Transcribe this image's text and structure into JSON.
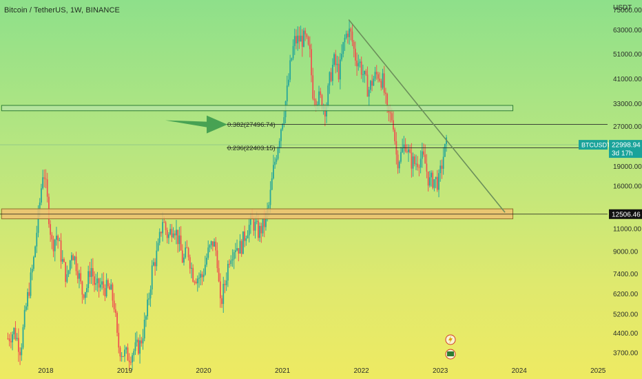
{
  "header": {
    "title": "Bitcoin / TetherUS, 1W, BINANCE"
  },
  "chart_data": {
    "type": "candlestick",
    "symbol": "BTCUSDT",
    "interval": "1W",
    "exchange": "BINANCE",
    "y_scale": "log",
    "y_unit": "USDT",
    "ylim": [
      3400,
      82000
    ],
    "xlim": [
      2017.42,
      2025.12
    ],
    "y_tick_labels": [
      "75000.00",
      "63000.00",
      "51000.00",
      "41000.00",
      "33000.00",
      "27000.00",
      "19000.00",
      "16000.00",
      "11000.00",
      "9000.00",
      "7400.00",
      "6200.00",
      "5200.00",
      "4400.00",
      "3700.00"
    ],
    "y_ticks": [
      75000,
      63000,
      51000,
      41000,
      33000,
      27000,
      19000,
      16000,
      11000,
      9000,
      7400,
      6200,
      5200,
      4400,
      3700
    ],
    "x_tick_labels": [
      "2018",
      "2019",
      "2020",
      "2021",
      "2022",
      "2023",
      "2024",
      "2025"
    ],
    "x_ticks": [
      2018,
      2019,
      2020,
      2021,
      2022,
      2023,
      2024,
      2025
    ],
    "price_path": [
      [
        2017.52,
        4200
      ],
      [
        2017.6,
        4500
      ],
      [
        2017.68,
        3800
      ],
      [
        2017.76,
        5800
      ],
      [
        2017.84,
        8000
      ],
      [
        2017.92,
        13500
      ],
      [
        2017.97,
        19000
      ],
      [
        2018.02,
        14000
      ],
      [
        2018.08,
        9500
      ],
      [
        2018.14,
        10500
      ],
      [
        2018.2,
        8500
      ],
      [
        2018.27,
        7000
      ],
      [
        2018.33,
        9200
      ],
      [
        2018.4,
        7800
      ],
      [
        2018.46,
        6300
      ],
      [
        2018.52,
        6600
      ],
      [
        2018.57,
        8000
      ],
      [
        2018.63,
        6500
      ],
      [
        2018.7,
        6700
      ],
      [
        2018.76,
        6500
      ],
      [
        2018.82,
        6400
      ],
      [
        2018.87,
        5600
      ],
      [
        2018.91,
        4000
      ],
      [
        2018.97,
        3700
      ],
      [
        2019.05,
        3600
      ],
      [
        2019.13,
        3800
      ],
      [
        2019.2,
        4000
      ],
      [
        2019.28,
        5200
      ],
      [
        2019.35,
        7800
      ],
      [
        2019.42,
        9000
      ],
      [
        2019.48,
        12000
      ],
      [
        2019.55,
        10200
      ],
      [
        2019.62,
        11500
      ],
      [
        2019.68,
        10000
      ],
      [
        2019.74,
        8200
      ],
      [
        2019.8,
        9200
      ],
      [
        2019.86,
        7400
      ],
      [
        2019.92,
        7200
      ],
      [
        2019.98,
        7200
      ],
      [
        2020.05,
        8800
      ],
      [
        2020.12,
        9800
      ],
      [
        2020.17,
        8800
      ],
      [
        2020.21,
        5500
      ],
      [
        2020.27,
        6800
      ],
      [
        2020.33,
        8700
      ],
      [
        2020.4,
        9500
      ],
      [
        2020.47,
        9300
      ],
      [
        2020.55,
        11000
      ],
      [
        2020.62,
        11700
      ],
      [
        2020.7,
        10600
      ],
      [
        2020.77,
        11500
      ],
      [
        2020.83,
        13500
      ],
      [
        2020.88,
        18000
      ],
      [
        2020.94,
        23000
      ],
      [
        2021.0,
        29000
      ],
      [
        2021.05,
        35000
      ],
      [
        2021.1,
        46000
      ],
      [
        2021.15,
        57000
      ],
      [
        2021.22,
        58000
      ],
      [
        2021.29,
        58000
      ],
      [
        2021.35,
        50000
      ],
      [
        2021.38,
        37000
      ],
      [
        2021.43,
        35000
      ],
      [
        2021.49,
        34000
      ],
      [
        2021.55,
        31500
      ],
      [
        2021.6,
        41000
      ],
      [
        2021.65,
        48000
      ],
      [
        2021.72,
        43000
      ],
      [
        2021.78,
        57000
      ],
      [
        2021.83,
        63000
      ],
      [
        2021.87,
        60000
      ],
      [
        2021.92,
        50000
      ],
      [
        2021.98,
        47000
      ],
      [
        2022.04,
        41000
      ],
      [
        2022.09,
        37000
      ],
      [
        2022.15,
        41000
      ],
      [
        2022.21,
        43000
      ],
      [
        2022.27,
        40000
      ],
      [
        2022.33,
        30000
      ],
      [
        2022.4,
        29000
      ],
      [
        2022.45,
        20000
      ],
      [
        2022.5,
        21000
      ],
      [
        2022.56,
        23500
      ],
      [
        2022.62,
        20000
      ],
      [
        2022.68,
        19500
      ],
      [
        2022.74,
        20500
      ],
      [
        2022.8,
        20000
      ],
      [
        2022.86,
        16500
      ],
      [
        2022.92,
        17000
      ],
      [
        2022.98,
        16500
      ],
      [
        2023.04,
        21000
      ],
      [
        2023.08,
        23000
      ]
    ],
    "current_price": "22998.94",
    "countdown": "3d 17h",
    "ticker_badge": "BTCUSDT",
    "support_label": "12506.46",
    "support_price": 12506.46,
    "annotations": {
      "fib_382_label": "0.382(27496.74)",
      "fib_382_price": 27496.74,
      "fib_236_label": "0.236(22403.15)",
      "fib_236_price": 22403.15,
      "resistance_zone": [
        31000,
        32500
      ],
      "support_zone": [
        12000,
        13100
      ],
      "downtrend_line": [
        [
          2021.84,
          69000
        ],
        [
          2023.82,
          12700
        ]
      ],
      "arrow_target_price": 27496.74
    },
    "colors": {
      "up": "#26a69a",
      "down": "#ef5350",
      "resistance_fill": "#b7e4a4",
      "resistance_stroke": "#2e7d32",
      "support_fill": "#f0c070",
      "support_stroke": "#8d6e2c",
      "trendline": "#6b8f5a",
      "arrow": "#3c9a4e",
      "badge": "#1aa39a",
      "support_badge": "#111111"
    }
  },
  "icons": {
    "lightning": "lightning-icon",
    "flag": "flag-icon"
  }
}
